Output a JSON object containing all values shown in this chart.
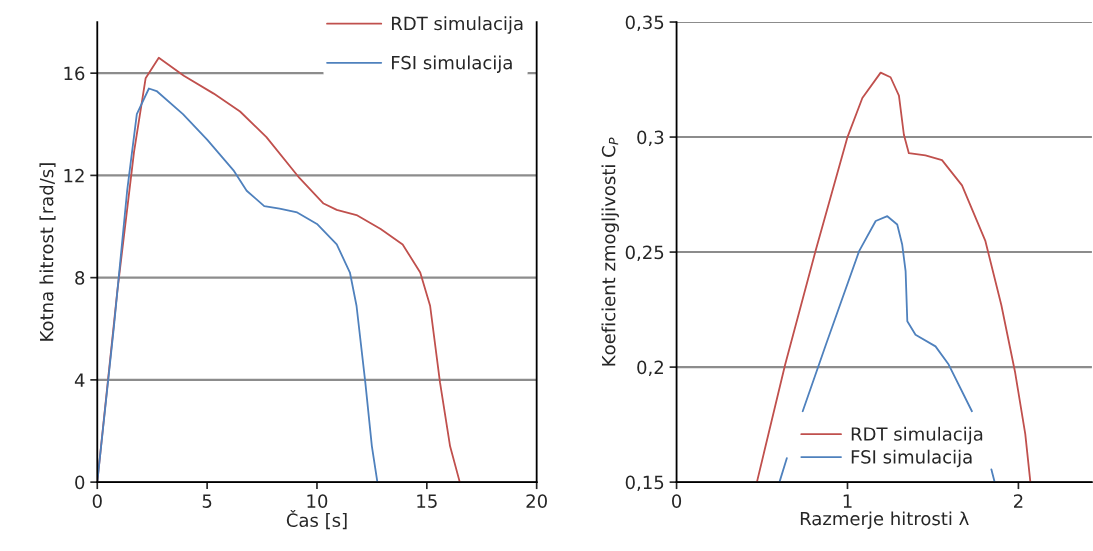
{
  "chart_data": [
    {
      "type": "line",
      "xlabel": "Čas [s]",
      "ylabel": "Kotna hitrost [rad/s]",
      "xlim": [
        0,
        20
      ],
      "ylim": [
        0,
        18
      ],
      "xticks": [
        0,
        5,
        10,
        15,
        20
      ],
      "yticks": [
        0,
        4,
        8,
        12,
        16
      ],
      "grid": "y",
      "legend": "top right",
      "series": [
        {
          "name": "RDT simulacija",
          "color": "#c0504d",
          "x": [
            0,
            0.91,
            1.67,
            2.2,
            2.8,
            3.94,
            5.3,
            6.5,
            7.7,
            9.2,
            10.3,
            10.9,
            11.8,
            12.9,
            13.9,
            14.7,
            15.15,
            15.6,
            16.06,
            16.5
          ],
          "values": [
            0,
            7.45,
            12.9,
            15.8,
            16.6,
            15.9,
            15.2,
            14.5,
            13.5,
            11.9,
            10.9,
            10.65,
            10.45,
            9.9,
            9.3,
            8.2,
            6.9,
            3.9,
            1.4,
            0
          ]
        },
        {
          "name": "FSI simulacija",
          "color": "#4f81bd",
          "x": [
            0,
            0.76,
            1.36,
            1.8,
            2.35,
            2.7,
            3.9,
            5.0,
            6.2,
            6.8,
            7.6,
            8.3,
            9.1,
            10.0,
            10.9,
            11.5,
            11.8,
            12.2,
            12.5,
            12.75
          ],
          "values": [
            0,
            6.1,
            11.4,
            14.4,
            15.4,
            15.3,
            14.4,
            13.4,
            12.2,
            11.4,
            10.8,
            10.7,
            10.55,
            10.1,
            9.3,
            8.2,
            6.9,
            3.9,
            1.4,
            0
          ]
        }
      ]
    },
    {
      "type": "line",
      "xlabel": "Razmerje hitrosti λ",
      "ylabel": "Koeficient zmogljivosti C$_{P}$",
      "xlim": [
        0,
        2.43
      ],
      "ylim": [
        0.15,
        0.35
      ],
      "xticks": [
        0,
        1,
        2
      ],
      "yticks": [
        {
          "value": 0.15,
          "label": "0,15"
        },
        {
          "value": 0.2,
          "label": "0,2"
        },
        {
          "value": 0.25,
          "label": "0,25"
        },
        {
          "value": 0.3,
          "label": "0,3"
        },
        {
          "value": 0.35,
          "label": "0,35"
        }
      ],
      "grid": "y",
      "legend": "bottom",
      "series": [
        {
          "name": "RDT simulacija",
          "color": "#c0504d",
          "x": [
            0.47,
            0.635,
            0.815,
            1.0,
            1.087,
            1.194,
            1.252,
            1.301,
            1.33,
            1.359,
            1.456,
            1.553,
            1.67,
            1.806,
            1.9,
            1.98,
            2.04,
            2.07
          ],
          "values": [
            0.15,
            0.201,
            0.251,
            0.3,
            0.317,
            0.328,
            0.326,
            0.318,
            0.301,
            0.293,
            0.292,
            0.29,
            0.279,
            0.255,
            0.227,
            0.198,
            0.171,
            0.15
          ]
        },
        {
          "name": "FSI simulacija",
          "color": "#4f81bd",
          "x": [
            0.602,
            0.645,
            0.69,
            0.738,
            0.874,
            1.068,
            1.165,
            1.233,
            1.291,
            1.32,
            1.34,
            1.35,
            1.398,
            1.515,
            1.592,
            1.728,
            1.8,
            1.842,
            1.86
          ],
          "values": [
            0.15,
            0.1604,
            null,
            0.1808,
            0.2098,
            0.2504,
            0.2635,
            0.2656,
            0.262,
            0.2533,
            0.2417,
            0.2199,
            0.2141,
            0.209,
            0.2011,
            0.1808,
            null,
            0.1555,
            0.1503
          ]
        }
      ]
    }
  ]
}
